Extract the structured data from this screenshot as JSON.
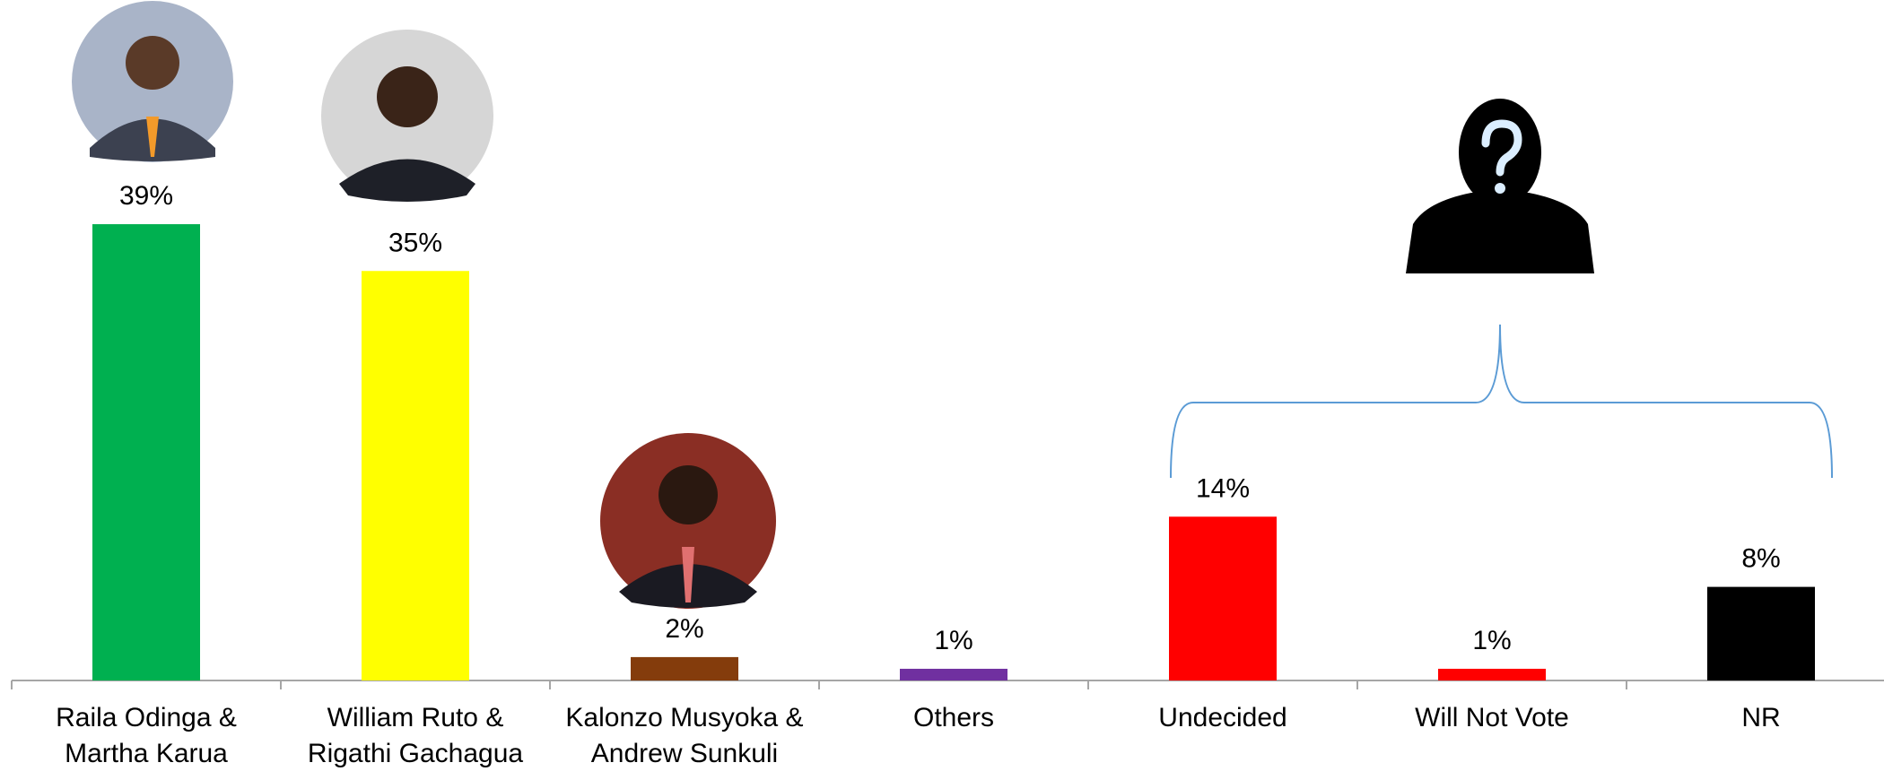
{
  "chart_data": {
    "type": "bar",
    "categories": [
      "Raila Odinga &\nMartha Karua",
      "William Ruto &\nRigathi Gachagua",
      "Kalonzo Musyoka &\nAndrew Sunkuli",
      "Others",
      "Undecided",
      "Will Not Vote",
      "NR"
    ],
    "values": [
      39,
      35,
      2,
      1,
      14,
      1,
      8
    ],
    "value_labels": [
      "39%",
      "35%",
      "2%",
      "1%",
      "14%",
      "1%",
      "8%"
    ],
    "colors": [
      "#00b050",
      "#ffff00",
      "#843c0c",
      "#7030a0",
      "#ff0000",
      "#ff0000",
      "#000000"
    ],
    "grid": false
  }
}
